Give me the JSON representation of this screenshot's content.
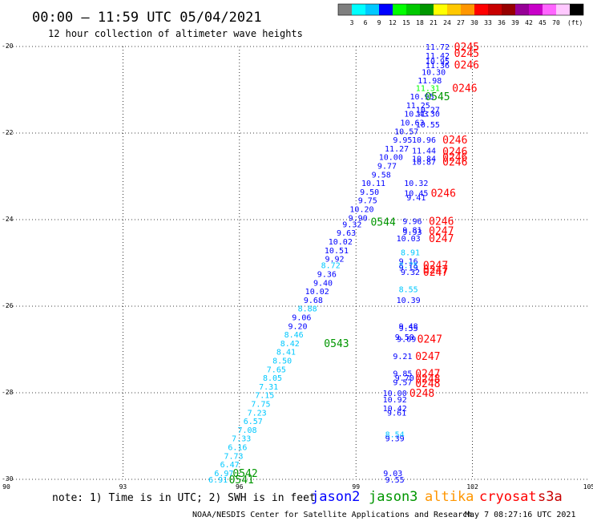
{
  "header": {
    "title": "00:00 — 11:59 UTC 05/04/2021",
    "subtitle": "12 hour collection of altimeter wave heights",
    "unit": "(ft)"
  },
  "colorbar": {
    "colors": [
      "#7f7f7f",
      "#00ffff",
      "#00c8ff",
      "#0000ff",
      "#00ff00",
      "#00c800",
      "#009600",
      "#ffff00",
      "#ffc800",
      "#ff9600",
      "#ff0000",
      "#c80000",
      "#960000",
      "#960096",
      "#c800c8",
      "#ff64ff",
      "#ffc8ff",
      "#000000"
    ],
    "labels": [
      "3",
      "6",
      "9",
      "12",
      "15",
      "18",
      "21",
      "24",
      "27",
      "30",
      "33",
      "36",
      "39",
      "42",
      "45",
      "70"
    ]
  },
  "chart_data": {
    "type": "scatter",
    "x_axis": {
      "range": [
        90,
        105
      ],
      "ticks": [
        "90",
        "93",
        "96",
        "99",
        "102",
        "105"
      ]
    },
    "y_axis": {
      "range": [
        -30,
        -20
      ],
      "ticks": [
        "-20",
        "-22",
        "-24",
        "-26",
        "-28",
        "-30"
      ]
    },
    "grid": true,
    "series": [
      {
        "name": "jason2",
        "color": "#0000ff"
      },
      {
        "name": "jason3",
        "color": "#009600"
      },
      {
        "name": "altika",
        "color": "#ff9600"
      },
      {
        "name": "cryosat",
        "color": "#ff0000"
      },
      {
        "name": "s3a",
        "color": "#c80000"
      }
    ],
    "points": [
      {
        "x": 101.1,
        "y": -20.0,
        "t": "11.72",
        "c": "#0000ff"
      },
      {
        "x": 101.1,
        "y": -20.2,
        "t": "11.42",
        "c": "#0000ff"
      },
      {
        "x": 101.1,
        "y": -20.33,
        "t": "10.95",
        "c": "#0000ff"
      },
      {
        "x": 101.1,
        "y": -20.43,
        "t": "11.36",
        "c": "#0000ff"
      },
      {
        "x": 101.0,
        "y": -20.58,
        "t": "10.30",
        "c": "#0000ff"
      },
      {
        "x": 100.9,
        "y": -20.78,
        "t": "11.98",
        "c": "#0000ff"
      },
      {
        "x": 100.85,
        "y": -20.95,
        "t": "11.31",
        "c": "#00ff00"
      },
      {
        "x": 100.7,
        "y": -21.15,
        "t": "10.95",
        "c": "#0000ff"
      },
      {
        "x": 100.6,
        "y": -21.35,
        "t": "11.25",
        "c": "#0000ff"
      },
      {
        "x": 100.85,
        "y": -21.45,
        "t": "10.27",
        "c": "#0000ff"
      },
      {
        "x": 100.55,
        "y": -21.55,
        "t": "10.43",
        "c": "#0000ff"
      },
      {
        "x": 100.85,
        "y": -21.55,
        "t": "11.30",
        "c": "#0000ff"
      },
      {
        "x": 100.45,
        "y": -21.75,
        "t": "10.63",
        "c": "#0000ff"
      },
      {
        "x": 100.85,
        "y": -21.8,
        "t": "10.55",
        "c": "#0000ff"
      },
      {
        "x": 100.3,
        "y": -21.95,
        "t": "10.57",
        "c": "#0000ff"
      },
      {
        "x": 100.2,
        "y": -22.15,
        "t": "9.95",
        "c": "#0000ff"
      },
      {
        "x": 100.75,
        "y": -22.15,
        "t": "10.96",
        "c": "#0000ff"
      },
      {
        "x": 100.05,
        "y": -22.35,
        "t": "11.27",
        "c": "#0000ff"
      },
      {
        "x": 100.75,
        "y": -22.4,
        "t": "11.44",
        "c": "#0000ff"
      },
      {
        "x": 99.9,
        "y": -22.55,
        "t": "10.00",
        "c": "#0000ff"
      },
      {
        "x": 100.75,
        "y": -22.58,
        "t": "10.84",
        "c": "#0000ff"
      },
      {
        "x": 100.75,
        "y": -22.66,
        "t": "10.87",
        "c": "#0000ff"
      },
      {
        "x": 99.8,
        "y": -22.75,
        "t": "9.77",
        "c": "#0000ff"
      },
      {
        "x": 99.65,
        "y": -22.95,
        "t": "9.58",
        "c": "#0000ff"
      },
      {
        "x": 99.45,
        "y": -23.15,
        "t": "10.11",
        "c": "#0000ff"
      },
      {
        "x": 100.55,
        "y": -23.15,
        "t": "10.32",
        "c": "#0000ff"
      },
      {
        "x": 99.35,
        "y": -23.35,
        "t": "9.50",
        "c": "#0000ff"
      },
      {
        "x": 100.55,
        "y": -23.38,
        "t": "10.45",
        "c": "#0000ff"
      },
      {
        "x": 100.55,
        "y": -23.48,
        "t": "9.41",
        "c": "#0000ff"
      },
      {
        "x": 99.3,
        "y": -23.55,
        "t": "9.75",
        "c": "#0000ff"
      },
      {
        "x": 99.15,
        "y": -23.75,
        "t": "10.20",
        "c": "#0000ff"
      },
      {
        "x": 99.05,
        "y": -23.95,
        "t": "9.90",
        "c": "#0000ff"
      },
      {
        "x": 100.45,
        "y": -24.03,
        "t": "9.96",
        "c": "#0000ff"
      },
      {
        "x": 98.9,
        "y": -24.1,
        "t": "9.32",
        "c": "#0000ff"
      },
      {
        "x": 100.45,
        "y": -24.23,
        "t": "9.81",
        "c": "#0000ff"
      },
      {
        "x": 100.45,
        "y": -24.28,
        "t": "9.93",
        "c": "#0000ff"
      },
      {
        "x": 98.75,
        "y": -24.3,
        "t": "9.63",
        "c": "#0000ff"
      },
      {
        "x": 100.35,
        "y": -24.43,
        "t": "10.03",
        "c": "#0000ff"
      },
      {
        "x": 98.6,
        "y": -24.5,
        "t": "10.02",
        "c": "#0000ff"
      },
      {
        "x": 98.5,
        "y": -24.7,
        "t": "10.51",
        "c": "#0000ff"
      },
      {
        "x": 100.4,
        "y": -24.75,
        "t": "8.91",
        "c": "#00c8ff"
      },
      {
        "x": 98.45,
        "y": -24.9,
        "t": "9.92",
        "c": "#0000ff"
      },
      {
        "x": 100.35,
        "y": -24.95,
        "t": "9.16",
        "c": "#0000ff"
      },
      {
        "x": 98.35,
        "y": -25.05,
        "t": "8.72",
        "c": "#00c8ff"
      },
      {
        "x": 100.35,
        "y": -25.05,
        "t": "8.75",
        "c": "#00c8ff"
      },
      {
        "x": 100.35,
        "y": -25.1,
        "t": "9.19",
        "c": "#0000ff"
      },
      {
        "x": 100.4,
        "y": -25.2,
        "t": "9.32",
        "c": "#0000ff"
      },
      {
        "x": 98.25,
        "y": -25.25,
        "t": "9.36",
        "c": "#0000ff"
      },
      {
        "x": 98.15,
        "y": -25.45,
        "t": "9.40",
        "c": "#0000ff"
      },
      {
        "x": 100.35,
        "y": -25.6,
        "t": "8.55",
        "c": "#00c8ff"
      },
      {
        "x": 98.0,
        "y": -25.65,
        "t": "10.02",
        "c": "#0000ff"
      },
      {
        "x": 97.9,
        "y": -25.85,
        "t": "9.68",
        "c": "#0000ff"
      },
      {
        "x": 100.35,
        "y": -25.85,
        "t": "10.39",
        "c": "#0000ff"
      },
      {
        "x": 97.75,
        "y": -26.05,
        "t": "8.88",
        "c": "#00c8ff"
      },
      {
        "x": 97.6,
        "y": -26.25,
        "t": "9.06",
        "c": "#0000ff"
      },
      {
        "x": 100.35,
        "y": -26.45,
        "t": "9.48",
        "c": "#0000ff"
      },
      {
        "x": 97.5,
        "y": -26.45,
        "t": "9.20",
        "c": "#0000ff"
      },
      {
        "x": 100.35,
        "y": -26.5,
        "t": "9.55",
        "c": "#0000ff"
      },
      {
        "x": 97.4,
        "y": -26.65,
        "t": "8.46",
        "c": "#00c8ff"
      },
      {
        "x": 100.25,
        "y": -26.7,
        "t": "9.50",
        "c": "#0000ff"
      },
      {
        "x": 100.3,
        "y": -26.75,
        "t": "9.09",
        "c": "#0000ff"
      },
      {
        "x": 97.3,
        "y": -26.85,
        "t": "8.42",
        "c": "#00c8ff"
      },
      {
        "x": 97.2,
        "y": -27.05,
        "t": "8.41",
        "c": "#00c8ff"
      },
      {
        "x": 100.2,
        "y": -27.15,
        "t": "9.21",
        "c": "#0000ff"
      },
      {
        "x": 97.1,
        "y": -27.25,
        "t": "8.50",
        "c": "#00c8ff"
      },
      {
        "x": 96.95,
        "y": -27.45,
        "t": "7.65",
        "c": "#00c8ff"
      },
      {
        "x": 100.2,
        "y": -27.55,
        "t": "9.85",
        "c": "#0000ff"
      },
      {
        "x": 96.85,
        "y": -27.65,
        "t": "8.05",
        "c": "#00c8ff"
      },
      {
        "x": 100.25,
        "y": -27.65,
        "t": "9.70",
        "c": "#0000ff"
      },
      {
        "x": 100.2,
        "y": -27.75,
        "t": "9.57",
        "c": "#0000ff"
      },
      {
        "x": 96.75,
        "y": -27.85,
        "t": "7.31",
        "c": "#00c8ff"
      },
      {
        "x": 100.0,
        "y": -28.0,
        "t": "10.00",
        "c": "#0000ff"
      },
      {
        "x": 96.65,
        "y": -28.05,
        "t": "7.15",
        "c": "#00c8ff"
      },
      {
        "x": 100.0,
        "y": -28.15,
        "t": "10.92",
        "c": "#0000ff"
      },
      {
        "x": 96.55,
        "y": -28.25,
        "t": "7.75",
        "c": "#00c8ff"
      },
      {
        "x": 100.0,
        "y": -28.35,
        "t": "10.42",
        "c": "#0000ff"
      },
      {
        "x": 96.45,
        "y": -28.45,
        "t": "7.23",
        "c": "#00c8ff"
      },
      {
        "x": 100.05,
        "y": -28.45,
        "t": "9.61",
        "c": "#0000ff"
      },
      {
        "x": 96.35,
        "y": -28.65,
        "t": "6.57",
        "c": "#00c8ff"
      },
      {
        "x": 96.2,
        "y": -28.85,
        "t": "7.08",
        "c": "#00c8ff"
      },
      {
        "x": 100.0,
        "y": -28.95,
        "t": "8.54",
        "c": "#00c8ff"
      },
      {
        "x": 96.05,
        "y": -29.05,
        "t": "7.33",
        "c": "#00c8ff"
      },
      {
        "x": 100.0,
        "y": -29.05,
        "t": "9.39",
        "c": "#0000ff"
      },
      {
        "x": 95.95,
        "y": -29.25,
        "t": "6.16",
        "c": "#00c8ff"
      },
      {
        "x": 95.85,
        "y": -29.45,
        "t": "7.73",
        "c": "#00c8ff"
      },
      {
        "x": 95.75,
        "y": -29.65,
        "t": "6.47",
        "c": "#00c8ff"
      },
      {
        "x": 95.6,
        "y": -29.85,
        "t": "6.97",
        "c": "#00c8ff"
      },
      {
        "x": 99.95,
        "y": -29.85,
        "t": "9.03",
        "c": "#0000ff"
      },
      {
        "x": 95.45,
        "y": -30.0,
        "t": "6.91",
        "c": "#00c8ff"
      },
      {
        "x": 100.0,
        "y": -30.0,
        "t": "9.55",
        "c": "#0000ff"
      }
    ],
    "times": [
      {
        "x": 101.85,
        "y": -20.0,
        "t": "0245",
        "c": "#ff0000"
      },
      {
        "x": 101.85,
        "y": -20.15,
        "t": "0245",
        "c": "#ff0000"
      },
      {
        "x": 101.85,
        "y": -20.42,
        "t": "0246",
        "c": "#ff0000"
      },
      {
        "x": 101.8,
        "y": -20.95,
        "t": "0246",
        "c": "#ff0000"
      },
      {
        "x": 101.1,
        "y": -21.15,
        "t": "0545",
        "c": "#009600"
      },
      {
        "x": 101.55,
        "y": -22.15,
        "t": "0246",
        "c": "#ff0000"
      },
      {
        "x": 101.55,
        "y": -22.42,
        "t": "0246",
        "c": "#ff0000"
      },
      {
        "x": 101.55,
        "y": -22.55,
        "t": "0246",
        "c": "#ff0000"
      },
      {
        "x": 101.55,
        "y": -22.66,
        "t": "0246",
        "c": "#ff0000"
      },
      {
        "x": 101.25,
        "y": -23.38,
        "t": "0246",
        "c": "#ff0000"
      },
      {
        "x": 99.7,
        "y": -24.05,
        "t": "0544",
        "c": "#009600"
      },
      {
        "x": 101.2,
        "y": -24.03,
        "t": "0246",
        "c": "#ff0000"
      },
      {
        "x": 101.2,
        "y": -24.25,
        "t": "0247",
        "c": "#ff0000"
      },
      {
        "x": 101.2,
        "y": -24.43,
        "t": "0247",
        "c": "#ff0000"
      },
      {
        "x": 101.05,
        "y": -25.05,
        "t": "0247",
        "c": "#ff0000"
      },
      {
        "x": 101.05,
        "y": -25.15,
        "t": "0247",
        "c": "#ff0000"
      },
      {
        "x": 101.05,
        "y": -25.2,
        "t": "0247",
        "c": "#ff0000"
      },
      {
        "x": 98.5,
        "y": -26.85,
        "t": "0543",
        "c": "#009600"
      },
      {
        "x": 100.9,
        "y": -26.75,
        "t": "0247",
        "c": "#ff0000"
      },
      {
        "x": 100.85,
        "y": -27.15,
        "t": "0247",
        "c": "#ff0000"
      },
      {
        "x": 100.85,
        "y": -27.55,
        "t": "0247",
        "c": "#ff0000"
      },
      {
        "x": 100.85,
        "y": -27.67,
        "t": "0248",
        "c": "#ff0000"
      },
      {
        "x": 100.85,
        "y": -27.78,
        "t": "0248",
        "c": "#ff0000"
      },
      {
        "x": 100.7,
        "y": -28.0,
        "t": "0248",
        "c": "#ff0000"
      },
      {
        "x": 96.15,
        "y": -29.85,
        "t": "0542",
        "c": "#009600"
      },
      {
        "x": 96.05,
        "y": -30.0,
        "t": "0541",
        "c": "#009600"
      }
    ]
  },
  "footer": {
    "note": "note:  1) Time is in UTC; 2) SWH is in feet",
    "credit": "NOAA/NESDIS Center for Satellite Applications and Research",
    "timestamp": "May  7 08:27:16 UTC 2021"
  }
}
